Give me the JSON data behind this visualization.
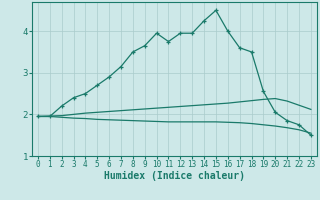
{
  "xlabel": "Humidex (Indice chaleur)",
  "xlim": [
    -0.5,
    23.5
  ],
  "ylim": [
    1.0,
    4.7
  ],
  "yticks": [
    1,
    2,
    3,
    4
  ],
  "xticks": [
    0,
    1,
    2,
    3,
    4,
    5,
    6,
    7,
    8,
    9,
    10,
    11,
    12,
    13,
    14,
    15,
    16,
    17,
    18,
    19,
    20,
    21,
    22,
    23
  ],
  "bg_color": "#cde8e8",
  "grid_color": "#aacccc",
  "line_color": "#1a7a6a",
  "lines": [
    {
      "x": [
        0,
        1,
        2,
        3,
        4,
        5,
        6,
        7,
        8,
        9,
        10,
        11,
        12,
        13,
        14,
        15,
        16,
        17,
        18,
        19,
        20,
        21,
        22,
        23
      ],
      "y": [
        1.95,
        1.95,
        2.2,
        2.4,
        2.5,
        2.7,
        2.9,
        3.15,
        3.5,
        3.65,
        3.95,
        3.75,
        3.95,
        3.95,
        4.25,
        4.5,
        4.0,
        3.6,
        3.5,
        2.55,
        2.05,
        1.85,
        1.75,
        1.5
      ],
      "marker": true
    },
    {
      "x": [
        0,
        1,
        2,
        3,
        4,
        5,
        6,
        7,
        8,
        9,
        10,
        11,
        12,
        13,
        14,
        15,
        16,
        17,
        18,
        19,
        20,
        21,
        22,
        23
      ],
      "y": [
        1.95,
        1.96,
        1.97,
        2.0,
        2.03,
        2.05,
        2.07,
        2.09,
        2.11,
        2.13,
        2.15,
        2.17,
        2.19,
        2.21,
        2.23,
        2.25,
        2.27,
        2.3,
        2.33,
        2.36,
        2.38,
        2.32,
        2.22,
        2.12
      ],
      "marker": false
    },
    {
      "x": [
        0,
        1,
        2,
        3,
        4,
        5,
        6,
        7,
        8,
        9,
        10,
        11,
        12,
        13,
        14,
        15,
        16,
        17,
        18,
        19,
        20,
        21,
        22,
        23
      ],
      "y": [
        1.95,
        1.95,
        1.93,
        1.91,
        1.9,
        1.88,
        1.87,
        1.86,
        1.85,
        1.84,
        1.83,
        1.82,
        1.82,
        1.82,
        1.82,
        1.82,
        1.81,
        1.8,
        1.78,
        1.75,
        1.72,
        1.68,
        1.63,
        1.55
      ],
      "marker": false
    }
  ]
}
